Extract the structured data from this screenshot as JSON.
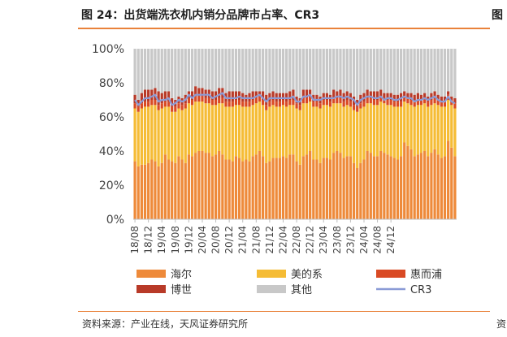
{
  "figure": {
    "title": "图 24：出货端洗衣机内销分品牌市占率、CR3",
    "source": "资料来源：产业在线，天风证券研究所",
    "right_title_fragment": "图",
    "right_source_fragment": "资"
  },
  "colors": {
    "haier": "#ee8a3a",
    "midea": "#f5bc35",
    "huierpu": "#d94a24",
    "boshi": "#b83a28",
    "other": "#c8c8c8",
    "cr3": "#8a9bd6",
    "accent_rule": "#e9823a"
  },
  "chart_data": {
    "type": "bar",
    "stacked": true,
    "title": "出货端洗衣机内销分品牌市占率、CR3",
    "xlabel": "",
    "ylabel": "",
    "ylim": [
      0,
      100
    ],
    "yticks": [
      "0%",
      "20%",
      "40%",
      "60%",
      "80%",
      "100%"
    ],
    "ytick_values": [
      0,
      20,
      40,
      60,
      80,
      100
    ],
    "x_tick_labels": [
      "18/08",
      "18/12",
      "19/04",
      "19/08",
      "19/12",
      "20/04",
      "20/08",
      "20/12",
      "21/04",
      "21/08",
      "21/12",
      "22/04",
      "22/08",
      "22/12",
      "23/04",
      "23/08",
      "23/12",
      "24/04",
      "24/08",
      "24/12"
    ],
    "tick_every": 4,
    "legend_position": "bottom",
    "series": [
      {
        "name": "海尔",
        "key": "haier",
        "values": [
          34,
          31,
          32,
          32,
          33,
          35,
          34,
          31,
          33,
          38,
          35,
          34,
          33,
          37,
          35,
          33,
          38,
          37,
          39,
          40,
          40,
          39,
          39,
          37,
          38,
          40,
          38,
          35,
          35,
          34,
          37,
          36,
          34,
          35,
          34,
          37,
          38,
          40,
          37,
          33,
          34,
          36,
          36,
          36,
          37,
          36,
          38,
          38,
          34,
          32,
          37,
          38,
          40,
          35,
          35,
          33,
          36,
          36,
          35,
          39,
          40,
          39,
          36,
          37,
          37,
          33,
          30,
          33,
          35,
          40,
          39,
          37,
          37,
          40,
          39,
          38,
          37,
          36,
          35,
          37,
          45,
          43,
          41,
          37,
          38,
          39,
          40,
          37,
          39,
          41,
          38,
          36,
          37,
          46,
          42,
          37
        ]
      },
      {
        "name": "美的系",
        "key": "midea",
        "values": [
          31,
          32,
          33,
          34,
          33,
          32,
          33,
          33,
          32,
          28,
          31,
          29,
          30,
          28,
          29,
          32,
          30,
          30,
          30,
          29,
          29,
          29,
          29,
          30,
          29,
          28,
          30,
          31,
          31,
          32,
          30,
          31,
          32,
          31,
          32,
          30,
          30,
          29,
          30,
          31,
          32,
          31,
          30,
          30,
          30,
          30,
          29,
          29,
          31,
          32,
          31,
          30,
          29,
          31,
          31,
          32,
          31,
          31,
          31,
          29,
          28,
          29,
          30,
          30,
          29,
          31,
          33,
          32,
          31,
          28,
          29,
          30,
          30,
          29,
          29,
          29,
          30,
          30,
          31,
          29,
          24,
          25,
          26,
          29,
          29,
          28,
          28,
          29,
          28,
          27,
          29,
          30,
          29,
          24,
          25,
          28
        ]
      },
      {
        "name": "惠而浦",
        "key": "huierpu",
        "values": [
          3,
          3,
          3,
          3,
          3,
          3,
          3,
          3,
          3,
          3,
          3,
          3,
          3,
          3,
          3,
          3,
          3,
          3,
          3,
          3,
          3,
          3,
          3,
          3,
          3,
          3,
          3,
          3,
          3,
          3,
          3,
          3,
          3,
          3,
          3,
          3,
          3,
          3,
          3,
          3,
          3,
          3,
          3,
          3,
          3,
          3,
          3,
          3,
          3,
          3,
          3,
          3,
          3,
          3,
          3,
          3,
          3,
          3,
          3,
          3,
          3,
          3,
          3,
          3,
          3,
          3,
          3,
          3,
          3,
          3,
          3,
          3,
          3,
          3,
          3,
          3,
          3,
          3,
          3,
          3,
          3,
          3,
          3,
          3,
          3,
          3,
          3,
          3,
          3,
          3,
          3,
          3,
          3,
          3,
          3,
          3
        ]
      },
      {
        "name": "博世",
        "key": "boshi",
        "values": [
          5,
          4,
          6,
          7,
          7,
          6,
          7,
          8,
          6,
          6,
          6,
          5,
          4,
          4,
          4,
          5,
          4,
          5,
          6,
          5,
          5,
          5,
          5,
          5,
          5,
          6,
          6,
          5,
          6,
          6,
          5,
          5,
          5,
          4,
          5,
          5,
          4,
          3,
          5,
          6,
          5,
          5,
          5,
          5,
          4,
          5,
          5,
          6,
          4,
          4,
          5,
          5,
          4,
          4,
          4,
          4,
          4,
          4,
          4,
          5,
          4,
          5,
          5,
          5,
          5,
          5,
          4,
          5,
          5,
          5,
          4,
          5,
          5,
          4,
          3,
          4,
          4,
          4,
          4,
          5,
          3,
          3,
          4,
          4,
          4,
          3,
          3,
          3,
          4,
          4,
          3,
          3,
          3,
          2,
          2,
          3
        ]
      },
      {
        "name": "其他",
        "key": "other",
        "values": [
          27,
          30,
          26,
          24,
          24,
          24,
          23,
          25,
          26,
          25,
          25,
          29,
          30,
          28,
          29,
          27,
          25,
          25,
          22,
          23,
          23,
          24,
          24,
          25,
          25,
          23,
          23,
          26,
          25,
          25,
          25,
          25,
          26,
          27,
          26,
          25,
          25,
          25,
          25,
          27,
          26,
          25,
          26,
          26,
          26,
          26,
          25,
          24,
          28,
          29,
          24,
          24,
          24,
          27,
          27,
          28,
          26,
          26,
          27,
          24,
          25,
          24,
          26,
          25,
          26,
          28,
          30,
          27,
          26,
          24,
          25,
          25,
          25,
          24,
          26,
          26,
          26,
          27,
          27,
          26,
          25,
          26,
          26,
          27,
          26,
          27,
          26,
          28,
          26,
          25,
          27,
          28,
          28,
          25,
          28,
          29
        ]
      },
      {
        "name": "CR3",
        "key": "cr3",
        "type": "line",
        "values": [
          70,
          67,
          69,
          71,
          71,
          72,
          73,
          69,
          70,
          70,
          71,
          67,
          68,
          70,
          69,
          70,
          73,
          71,
          73,
          73,
          73,
          73,
          73,
          71,
          72,
          73,
          74,
          71,
          71,
          71,
          71,
          72,
          71,
          71,
          71,
          71,
          72,
          73,
          71,
          69,
          71,
          71,
          71,
          71,
          71,
          71,
          71,
          72,
          69,
          69,
          72,
          72,
          73,
          70,
          70,
          70,
          71,
          71,
          71,
          71,
          72,
          72,
          71,
          72,
          71,
          70,
          67,
          70,
          71,
          72,
          72,
          71,
          71,
          72,
          70,
          71,
          71,
          70,
          70,
          71,
          72,
          71,
          71,
          69,
          70,
          70,
          71,
          70,
          71,
          72,
          70,
          69,
          69,
          72,
          69,
          68
        ]
      }
    ]
  }
}
